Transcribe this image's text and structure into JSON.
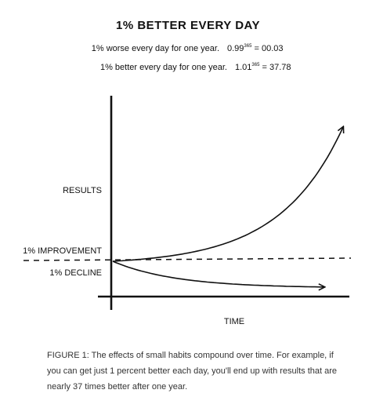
{
  "title": "1% BETTER EVERY DAY",
  "equations": {
    "worse": {
      "description": "1% worse every day for one year.",
      "base": "0.99",
      "exponent": "365",
      "result": "= 00.03"
    },
    "better": {
      "description": "1% better every day for one year.",
      "base": "1.01",
      "exponent": "365",
      "result": "= 37.78"
    }
  },
  "chart_data": {
    "type": "line",
    "title": "1% BETTER EVERY DAY",
    "xlabel": "TIME",
    "ylabel": "RESULTS",
    "xlim": [
      0,
      365
    ],
    "grid": false,
    "series": [
      {
        "name": "1% IMPROVEMENT",
        "x": [
          0,
          365
        ],
        "y": [
          1.0,
          37.78
        ]
      },
      {
        "name": "1% DECLINE",
        "x": [
          0,
          365
        ],
        "y": [
          1.0,
          0.03
        ]
      }
    ],
    "annotations": [
      "1% IMPROVEMENT",
      "1% DECLINE"
    ]
  },
  "caption": "FIGURE 1: The effects of small habits compound over time. For example, if you can get just 1 percent better each day, you'll end up with results that are nearly 37 times better after one year."
}
